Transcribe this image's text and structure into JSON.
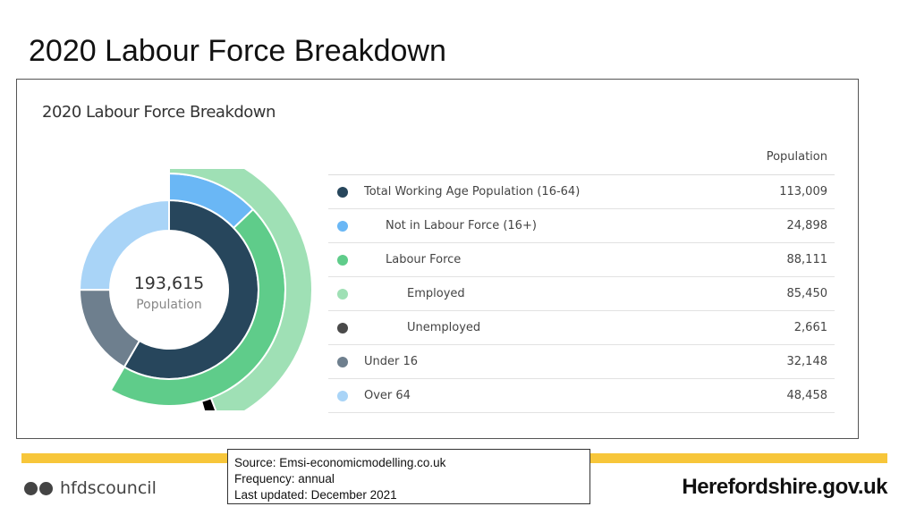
{
  "slide": {
    "title": "2020 Labour Force Breakdown"
  },
  "card": {
    "title": "2020 Labour Force Breakdown",
    "center_value": "193,615",
    "center_label": "Population"
  },
  "table": {
    "value_header": "Population",
    "rows": [
      {
        "label": "Total Working Age Population (16-64)",
        "value": "113,009",
        "color": "#27465c",
        "level": 0
      },
      {
        "label": "Not in Labour Force (16+)",
        "value": "24,898",
        "color": "#6ab7f5",
        "level": 1
      },
      {
        "label": "Labour Force",
        "value": "88,111",
        "color": "#5fcc8a",
        "level": 1
      },
      {
        "label": "Employed",
        "value": "85,450",
        "color": "#9fe0b5",
        "level": 2
      },
      {
        "label": "Unemployed",
        "value": "2,661",
        "color": "#4a4a4a",
        "level": 2
      },
      {
        "label": "Under 16",
        "value": "32,148",
        "color": "#6e7f8e",
        "level": 0
      },
      {
        "label": "Over 64",
        "value": "48,458",
        "color": "#a9d4f7",
        "level": 0
      }
    ]
  },
  "chart_data": {
    "type": "pie",
    "title": "2020 Labour Force Breakdown",
    "total": 193615,
    "rings": [
      {
        "level": 0,
        "slices": [
          {
            "name": "Total Working Age Population (16-64)",
            "value": 113009,
            "color": "#27465c"
          },
          {
            "name": "Under 16",
            "value": 32148,
            "color": "#6e7f8e"
          },
          {
            "name": "Over 64",
            "value": 48458,
            "color": "#a9d4f7"
          }
        ]
      },
      {
        "level": 1,
        "slices": [
          {
            "name": "Not in Labour Force (16+)",
            "value": 24898,
            "color": "#6ab7f5"
          },
          {
            "name": "Labour Force",
            "value": 88111,
            "color": "#5fcc8a"
          }
        ]
      },
      {
        "level": 2,
        "slices": [
          {
            "name": "Employed",
            "value": 85450,
            "color": "#9fe0b5"
          },
          {
            "name": "Unemployed",
            "value": 2661,
            "color": "#000000"
          }
        ]
      }
    ]
  },
  "footer": {
    "social_icons": [
      "twitter-icon",
      "facebook-icon"
    ],
    "handle": "hfdscouncil",
    "source_line": "Source:  Emsi-economicmodelling.co.uk",
    "frequency_line": "Frequency: annual",
    "updated_line": "Last updated:  December 2021",
    "brand": "Herefordshire.gov.uk",
    "band_color": "#f7c63a"
  }
}
